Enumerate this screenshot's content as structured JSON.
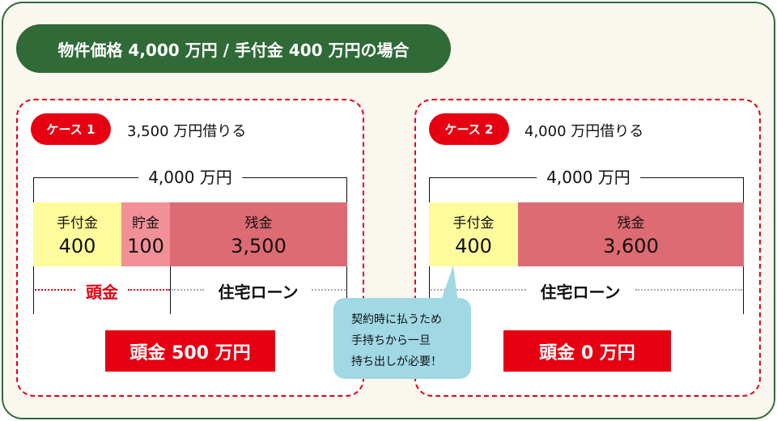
{
  "title": "物件価格 4,000 万円 / 手付金 400 万円の場合",
  "colors": {
    "green": "#2f6a37",
    "red": "#e60012",
    "deposit": "#fefb9c",
    "savings": "#f29097",
    "balance": "#dd6b73",
    "bubble": "#a0d8e4"
  },
  "case1": {
    "badge": "ケース 1",
    "subtitle": "3,500 万円借りる",
    "total": "4,000 万円",
    "segments": [
      {
        "label": "手付金",
        "value": "400"
      },
      {
        "label": "貯金",
        "value": "100"
      },
      {
        "label": "残金",
        "value": "3,500"
      }
    ],
    "down_label": "頭金",
    "loan_label": "住宅ローン",
    "result": "頭金 500 万円"
  },
  "case2": {
    "badge": "ケース 2",
    "subtitle": "4,000 万円借りる",
    "total": "4,000 万円",
    "segments": [
      {
        "label": "手付金",
        "value": "400"
      },
      {
        "label": "残金",
        "value": "3,600"
      }
    ],
    "loan_label": "住宅ローン",
    "result": "頭金 0 万円"
  },
  "callout": [
    "契約時に払うため",
    "手持ちから一旦",
    "持ち出しが必要！"
  ]
}
